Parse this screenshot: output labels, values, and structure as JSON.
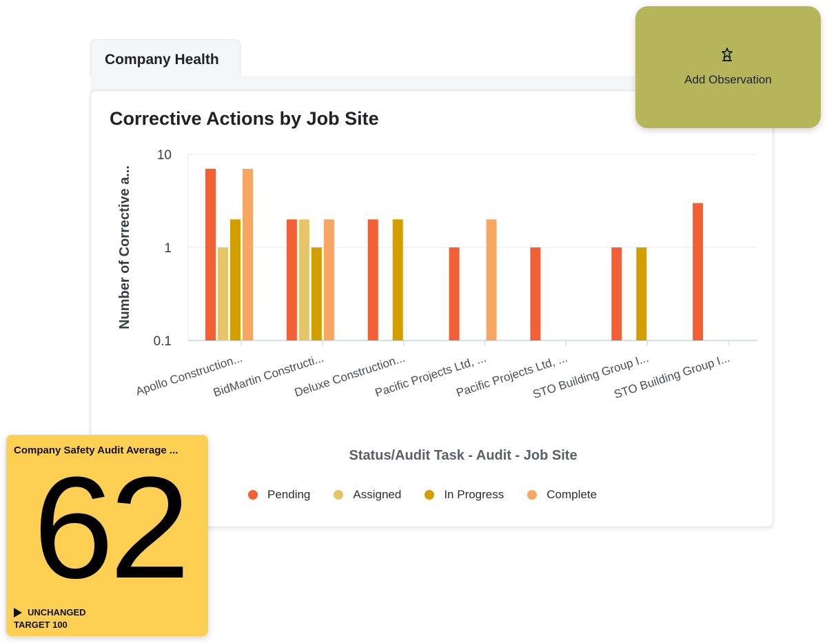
{
  "tab": {
    "label": "Company Health"
  },
  "observation": {
    "label": "Add Observation",
    "icon": "megaphone-icon"
  },
  "kpi": {
    "title": "Company Safety Audit Average ...",
    "value": "62",
    "trend": "UNCHANGED",
    "target": "TARGET 100",
    "color": "#fdcf52"
  },
  "chart_data": {
    "type": "bar",
    "title": "Corrective Actions by Job Site",
    "xlabel": "Status/Audit Task - Audit - Job Site",
    "ylabel": "Number of Corrective a...",
    "yscale": "log",
    "ylim": [
      0.1,
      10
    ],
    "yticks": [
      "10",
      "1",
      "0.1"
    ],
    "categories": [
      "Apollo Construction...",
      "BidMartin Constructi...",
      "Deluxe Construction...",
      "Pacific Projects Ltd, ...",
      "Pacific Projects Ltd, ...",
      "STO Building Group I...",
      "STO Building Group I..."
    ],
    "series": [
      {
        "name": "Pending",
        "color": "#f26135",
        "values": [
          7,
          2,
          2,
          1,
          1,
          1,
          3
        ]
      },
      {
        "name": "Assigned",
        "color": "#e6c46a",
        "values": [
          1,
          2,
          null,
          null,
          null,
          null,
          null
        ]
      },
      {
        "name": "In Progress",
        "color": "#d39e00",
        "values": [
          2,
          1,
          2,
          null,
          null,
          1,
          null
        ]
      },
      {
        "name": "Complete",
        "color": "#f7a663",
        "values": [
          7,
          2,
          null,
          2,
          null,
          null,
          null
        ]
      }
    ],
    "legend": "bottom",
    "grid": true
  }
}
